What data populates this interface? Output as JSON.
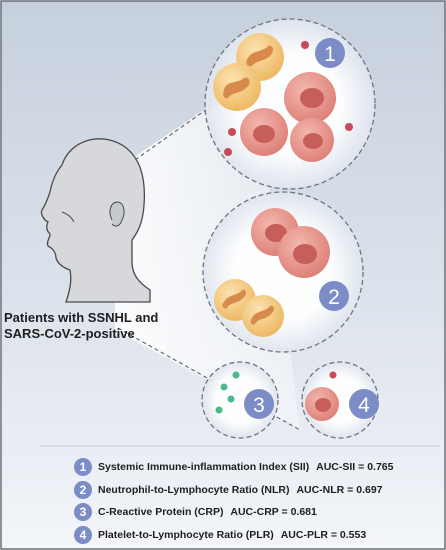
{
  "patient_label": {
    "line1": "Patients with SSNHL and",
    "line2": "SARS-CoV-2-positive"
  },
  "circle_numbers": [
    "1",
    "2",
    "3",
    "4"
  ],
  "legend": [
    {
      "number": "1",
      "text": "Systemic Immune-inflammation Index (SII)",
      "auc": "AUC-SII = 0.765"
    },
    {
      "number": "2",
      "text": "Neutrophil-to-Lymphocyte Ratio (NLR)",
      "auc": "AUC-NLR = 0.697"
    },
    {
      "number": "3",
      "text": "C-Reactive Protein (CRP)",
      "auc": "AUC-CRP = 0.681"
    },
    {
      "number": "4",
      "text": "Platelet-to-Lymphocyte Ratio (PLR)",
      "auc": "AUC-PLR = 0.553"
    }
  ],
  "colors": {
    "background_top": "#c9d3e0",
    "background_bottom": "#f2f4f8",
    "badge": "#7b8cc6",
    "neutrophil": "#f2c77a",
    "neutrophil_nucleus": "#d98a4a",
    "lymphocyte": "#e6938c",
    "lymphocyte_nucleus": "#c65e5a",
    "platelet": "#c94a57",
    "crp_dot": "#4bb98a"
  }
}
